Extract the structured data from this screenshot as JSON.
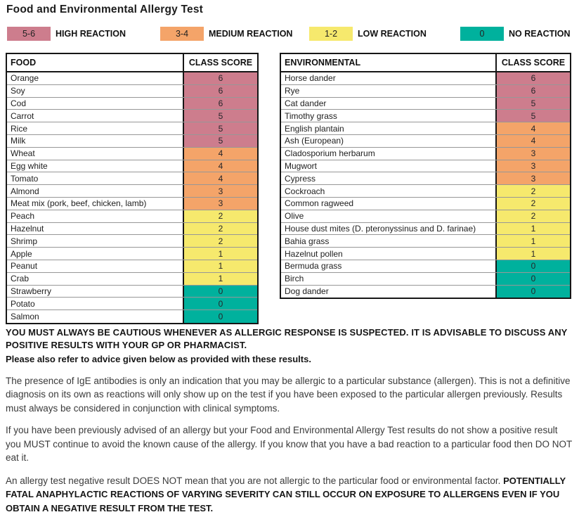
{
  "title": "Food and Environmental Allergy Test",
  "colors": {
    "high": "#cd7d8d",
    "medium": "#f4a469",
    "low": "#f6e96d",
    "none": "#00b19d"
  },
  "legend": {
    "items": [
      {
        "range": "5-6",
        "label": "HIGH REACTION",
        "color_key": "high"
      },
      {
        "range": "3-4",
        "label": "MEDIUM REACTION",
        "color_key": "medium"
      },
      {
        "range": "1-2",
        "label": "LOW REACTION",
        "color_key": "low"
      },
      {
        "range": "0",
        "label": "NO REACTION",
        "color_key": "none"
      }
    ]
  },
  "tables": {
    "food": {
      "header": {
        "name": "FOOD",
        "score": "CLASS SCORE"
      },
      "rows": [
        {
          "name": "Orange",
          "score": 6
        },
        {
          "name": "Soy",
          "score": 6
        },
        {
          "name": "Cod",
          "score": 6
        },
        {
          "name": "Carrot",
          "score": 5
        },
        {
          "name": "Rice",
          "score": 5
        },
        {
          "name": "Milk",
          "score": 5
        },
        {
          "name": "Wheat",
          "score": 4
        },
        {
          "name": "Egg white",
          "score": 4
        },
        {
          "name": "Tomato",
          "score": 4
        },
        {
          "name": "Almond",
          "score": 3
        },
        {
          "name": "Meat mix (pork, beef, chicken, lamb)",
          "score": 3
        },
        {
          "name": "Peach",
          "score": 2
        },
        {
          "name": "Hazelnut",
          "score": 2
        },
        {
          "name": "Shrimp",
          "score": 2
        },
        {
          "name": "Apple",
          "score": 1
        },
        {
          "name": "Peanut",
          "score": 1
        },
        {
          "name": "Crab",
          "score": 1
        },
        {
          "name": "Strawberry",
          "score": 0
        },
        {
          "name": "Potato",
          "score": 0
        },
        {
          "name": "Salmon",
          "score": 0
        }
      ]
    },
    "environmental": {
      "header": {
        "name": "ENVIRONMENTAL",
        "score": "CLASS SCORE"
      },
      "rows": [
        {
          "name": "Horse dander",
          "score": 6
        },
        {
          "name": "Rye",
          "score": 6
        },
        {
          "name": "Cat dander",
          "score": 5
        },
        {
          "name": "Timothy grass",
          "score": 5
        },
        {
          "name": "English plantain",
          "score": 4
        },
        {
          "name": "Ash (European)",
          "score": 4
        },
        {
          "name": "Cladosporium herbarum",
          "score": 3
        },
        {
          "name": "Mugwort",
          "score": 3
        },
        {
          "name": "Cypress",
          "score": 3
        },
        {
          "name": "Cockroach",
          "score": 2
        },
        {
          "name": "Common ragweed",
          "score": 2
        },
        {
          "name": "Olive",
          "score": 2
        },
        {
          "name": "House dust mites (D. pteronyssinus and D. farinae)",
          "score": 1
        },
        {
          "name": "Bahia grass",
          "score": 1
        },
        {
          "name": "Hazelnut pollen",
          "score": 1
        },
        {
          "name": "Bermuda grass",
          "score": 0
        },
        {
          "name": "Birch",
          "score": 0
        },
        {
          "name": "Dog dander",
          "score": 0
        }
      ]
    }
  },
  "notes": {
    "caution_caps": "YOU MUST ALWAYS BE CAUTIOUS WHENEVER AS ALLERGIC RESPONSE IS SUSPECTED. IT IS ADVISABLE TO DISCUSS ANY POSITIVE RESULTS WITH YOUR GP OR PHARMACIST.",
    "advice_line": "Please also refer to advice given below as provided with these results.",
    "para_ige": "The presence of IgE antibodies is only an indication that you may be allergic to a particular substance (allergen). This is not a definitive diagnosis on its own as reactions will only show up on the test if you have been exposed to the particular allergen previously. Results must always be considered in conjunction with clinical symptoms.",
    "para_avoid": "If you have been previously advised of an allergy but your Food and Environmental Allergy Test results do not show a positive result you MUST continue to avoid the known cause of the allergy. If you know that you have a bad reaction to a particular food then DO NOT eat it.",
    "para_negative_regular": "An allergy test negative result DOES NOT mean that you are not allergic to the particular food or environmental factor. ",
    "para_negative_bold": "POTENTIALLY FATAL ANAPHYLACTIC REACTIONS OF VARYING SEVERITY CAN STILL OCCUR ON EXPOSURE TO ALLERGENS EVEN IF YOU OBTAIN A NEGATIVE RESULT FROM THE TEST."
  }
}
